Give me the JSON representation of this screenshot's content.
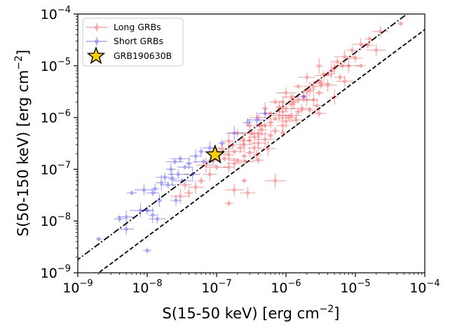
{
  "chart_data": {
    "type": "scatter",
    "xscale": "log",
    "yscale": "log",
    "xlim": [
      1e-09,
      0.0001
    ],
    "ylim": [
      1e-09,
      0.0001
    ],
    "grid": false,
    "legend_position": "top-left",
    "xlabel_text": "S(15-50 keV) [erg cm",
    "xlabel_sup": "−2",
    "xlabel_end": "]",
    "ylabel_text": "S(50-150 keV) [erg cm",
    "ylabel_sup": "−2",
    "ylabel_end": "]",
    "x_ticks": [
      {
        "value": 1e-09,
        "base": "10",
        "exp": "−9"
      },
      {
        "value": 1e-08,
        "base": "10",
        "exp": "−8"
      },
      {
        "value": 1e-07,
        "base": "10",
        "exp": "−7"
      },
      {
        "value": 1e-06,
        "base": "10",
        "exp": "−6"
      },
      {
        "value": 1e-05,
        "base": "10",
        "exp": "−5"
      },
      {
        "value": 0.0001,
        "base": "10",
        "exp": "−4"
      }
    ],
    "y_ticks": [
      {
        "value": 1e-09,
        "base": "10",
        "exp": "−9"
      },
      {
        "value": 1e-08,
        "base": "10",
        "exp": "−8"
      },
      {
        "value": 1e-07,
        "base": "10",
        "exp": "−7"
      },
      {
        "value": 1e-06,
        "base": "10",
        "exp": "−6"
      },
      {
        "value": 1e-05,
        "base": "10",
        "exp": "−5"
      },
      {
        "value": 0.0001,
        "base": "10",
        "exp": "−4"
      }
    ],
    "series": [
      {
        "name": "Long GRBs",
        "color": "#ff0000",
        "marker": "circle-errorbar",
        "points": [
          [
            4.5e-05,
            6.5e-05
          ],
          [
            2.3e-05,
            4.6e-05
          ],
          [
            1.6e-05,
            3.3e-05
          ],
          [
            1.2e-05,
            2.6e-05
          ],
          [
            9e-06,
            2e-05
          ],
          [
            7e-06,
            1.5e-05
          ],
          [
            5.5e-06,
            1.2e-05
          ],
          [
            4.5e-06,
            8e-06
          ],
          [
            3.5e-06,
            6.5e-06
          ],
          [
            3e-06,
            5e-06
          ],
          [
            2.5e-06,
            4e-06
          ],
          [
            2e-06,
            3.2e-06
          ],
          [
            1.8e-06,
            2.6e-06
          ],
          [
            1.5e-06,
            2.2e-06
          ],
          [
            1.2e-06,
            1.8e-06
          ],
          [
            1e-06,
            1.5e-06
          ],
          [
            9e-07,
            1.3e-06
          ],
          [
            8e-07,
            1.1e-06
          ],
          [
            7e-07,
            9.5e-07
          ],
          [
            6e-07,
            8e-07
          ],
          [
            5e-07,
            7e-07
          ],
          [
            4.5e-07,
            5.8e-07
          ],
          [
            4e-07,
            4.8e-07
          ],
          [
            3.5e-07,
            4.2e-07
          ],
          [
            3e-07,
            3.6e-07
          ],
          [
            2.5e-07,
            3e-07
          ],
          [
            2.2e-07,
            2.6e-07
          ],
          [
            1.8e-07,
            2.2e-07
          ],
          [
            1.5e-07,
            1.9e-07
          ],
          [
            1.3e-07,
            1.6e-07
          ],
          [
            2e-06,
            2.2e-06
          ],
          [
            1.5e-06,
            1.3e-06
          ],
          [
            1e-06,
            8.5e-07
          ],
          [
            7e-07,
            5.5e-07
          ],
          [
            5e-07,
            3.8e-07
          ],
          [
            3.5e-07,
            2.6e-07
          ],
          [
            2.5e-07,
            1.8e-07
          ],
          [
            1.8e-07,
            1.3e-07
          ],
          [
            3e-06,
            3e-06
          ],
          [
            4e-06,
            4.2e-06
          ],
          [
            6e-06,
            6e-06
          ],
          [
            8e-06,
            1e-05
          ],
          [
            1e-05,
            1.4e-05
          ],
          [
            3e-06,
            1e-05
          ],
          [
            2e-06,
            6e-06
          ],
          [
            1.5e-06,
            4e-06
          ],
          [
            1e-06,
            3e-06
          ],
          [
            7e-07,
            2e-06
          ],
          [
            5e-07,
            1.5e-06
          ],
          [
            4e-07,
            1e-06
          ],
          [
            3e-07,
            7e-07
          ],
          [
            2e-07,
            5e-07
          ],
          [
            1.5e-07,
            3.5e-07
          ],
          [
            1.2e-07,
            2.5e-07
          ],
          [
            6e-07,
            1.2e-06
          ],
          [
            8e-07,
            1.6e-06
          ],
          [
            1.2e-06,
            2.5e-06
          ],
          [
            2.5e-06,
            2.2e-06
          ],
          [
            1.2e-06,
            1.1e-06
          ],
          [
            9e-07,
            7e-07
          ],
          [
            6e-07,
            4.5e-07
          ],
          [
            4e-07,
            3.2e-07
          ],
          [
            3e-07,
            2.1e-07
          ],
          [
            2e-07,
            1.5e-07
          ],
          [
            1.5e-07,
            1.1e-07
          ],
          [
            1e-07,
            1.1e-07
          ],
          [
            8e-08,
            8e-08
          ],
          [
            6e-08,
            6e-08
          ],
          [
            5e-08,
            4.5e-08
          ],
          [
            4e-08,
            3.5e-08
          ],
          [
            3e-08,
            3e-08
          ],
          [
            3.5e-08,
            5e-08
          ],
          [
            2.5e-07,
            6e-08
          ],
          [
            2.8e-07,
            3.5e-08
          ],
          [
            1.5e-07,
            2.2e-08
          ],
          [
            1.8e-07,
            4e-08
          ],
          [
            4e-07,
            1.5e-07
          ],
          [
            7e-07,
            6e-08
          ],
          [
            3e-06,
            1.2e-06
          ],
          [
            5e-06,
            2.5e-06
          ],
          [
            7e-06,
            5e-06
          ],
          [
            1.2e-05,
            1e-05
          ],
          [
            2e-05,
            2e-05
          ],
          [
            1.5e-05,
            2.5e-05
          ],
          [
            9e-07,
            2e-06
          ],
          [
            1.1e-06,
            1e-06
          ],
          [
            1.3e-06,
            2e-06
          ],
          [
            1.7e-06,
            1.5e-06
          ],
          [
            2.2e-06,
            3.5e-06
          ],
          [
            3.2e-06,
            4.5e-06
          ],
          [
            4e-06,
            7e-06
          ],
          [
            5e-06,
            9e-06
          ],
          [
            6.5e-06,
            1e-05
          ],
          [
            2.8e-06,
            1.7e-06
          ],
          [
            2.2e-06,
            1.4e-06
          ],
          [
            1.4e-06,
            9e-07
          ],
          [
            9e-07,
            5e-07
          ],
          [
            5.5e-07,
            2.5e-07
          ],
          [
            3.8e-07,
            1.9e-07
          ],
          [
            2.6e-07,
            1.4e-07
          ],
          [
            4.2e-07,
            7e-07
          ],
          [
            3.2e-07,
            5e-07
          ],
          [
            2.4e-07,
            3.6e-07
          ],
          [
            1.7e-07,
            2.9e-07
          ],
          [
            1.1e-07,
            2e-07
          ],
          [
            9e-08,
            1.5e-07
          ],
          [
            7e-08,
            1.2e-07
          ]
        ]
      },
      {
        "name": "Short GRBs",
        "color": "#0000ff",
        "marker": "circle-errorbar",
        "points": [
          [
            2e-09,
            4.5e-09
          ],
          [
            5e-09,
            7e-09
          ],
          [
            1e-08,
            2.7e-09
          ],
          [
            5e-09,
            1.2e-08
          ],
          [
            4e-09,
            1.1e-08
          ],
          [
            8e-09,
            1.6e-08
          ],
          [
            1e-08,
            1.6e-08
          ],
          [
            1.2e-08,
            1.3e-08
          ],
          [
            1.4e-08,
            1.1e-08
          ],
          [
            6e-09,
            3.5e-08
          ],
          [
            9e-09,
            4e-08
          ],
          [
            1.2e-08,
            3.5e-08
          ],
          [
            1.5e-08,
            2.5e-08
          ],
          [
            2e-08,
            5e-08
          ],
          [
            2.3e-08,
            6.5e-08
          ],
          [
            1.8e-08,
            7e-08
          ],
          [
            1.6e-08,
            5.5e-08
          ],
          [
            2.8e-08,
            8e-08
          ],
          [
            3.5e-08,
            1.1e-07
          ],
          [
            4e-08,
            1.3e-07
          ],
          [
            2.5e-08,
            1.4e-07
          ],
          [
            2.2e-08,
            1e-07
          ],
          [
            3e-08,
            1.6e-07
          ],
          [
            5e-08,
            1.8e-07
          ],
          [
            6e-08,
            2.2e-07
          ],
          [
            4.5e-08,
            8e-08
          ],
          [
            1.3e-08,
            4.2e-08
          ],
          [
            3.2e-08,
            6e-08
          ],
          [
            2.6e-08,
            2.5e-08
          ],
          [
            6.5e-08,
            1.4e-07
          ],
          [
            8e-08,
            2.6e-07
          ],
          [
            1.2e-07,
            3.2e-07
          ],
          [
            1.8e-07,
            5e-07
          ],
          [
            2.8e-07,
            8e-07
          ],
          [
            3.8e-07,
            9e-07
          ],
          [
            5e-07,
            1.2e-06
          ],
          [
            1.8e-06,
            2.5e-06
          ]
        ]
      },
      {
        "name": "GRB190630B",
        "color": "#ffd000",
        "marker": "star",
        "points": [
          [
            9.5e-08,
            1.9e-07
          ]
        ]
      }
    ],
    "reference_lines": [
      {
        "style": "dashdot",
        "slope": 1,
        "ratio": 1.8
      },
      {
        "style": "dashed",
        "slope": 1,
        "ratio": 0.5
      }
    ]
  }
}
